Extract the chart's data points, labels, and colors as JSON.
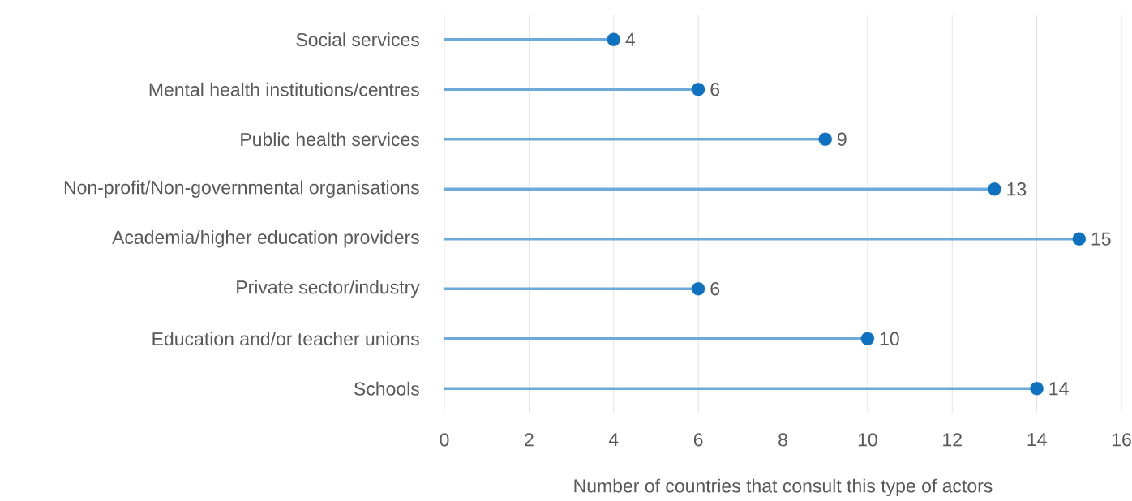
{
  "chart_data": {
    "type": "lollipop",
    "orientation": "horizontal",
    "xlabel": "Number of countries that consult this type of actors",
    "categories": [
      "Social services",
      "Mental health institutions/centres",
      "Public health services",
      "Non-profit/Non-governmental organisations",
      "Academia/higher education providers",
      "Private sector/industry",
      "Education and/or teacher unions",
      "Schools"
    ],
    "values": [
      4,
      6,
      9,
      13,
      15,
      6,
      10,
      14
    ],
    "color": "#0e72c0",
    "marker": "circle",
    "data_labels": true,
    "grid": "x",
    "xlim": [
      0,
      16
    ],
    "xticks": [
      0,
      2,
      4,
      6,
      8,
      10,
      12,
      14,
      16
    ]
  }
}
